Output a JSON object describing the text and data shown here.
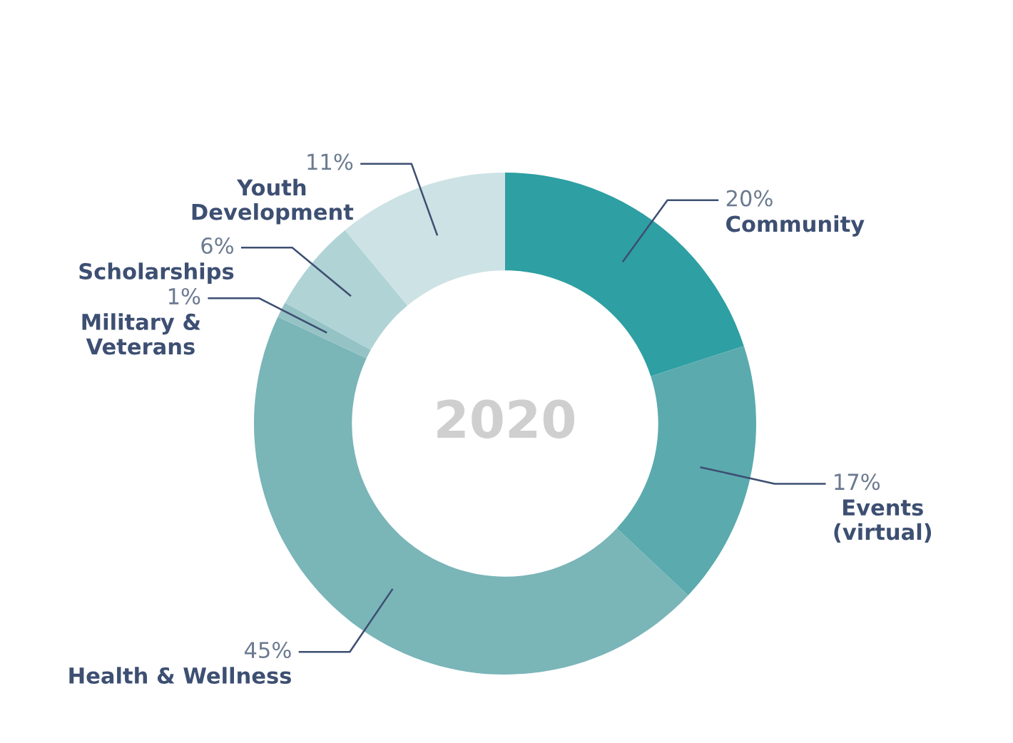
{
  "chart_data": {
    "type": "donut",
    "title": "2020",
    "categories": [
      "Community",
      "Events\n(virtual)",
      "Health & Wellness",
      "Military &\nVeterans",
      "Scholarships",
      "Youth\nDevelopment"
    ],
    "values": [
      20,
      17,
      45,
      1,
      6,
      11
    ],
    "value_labels": [
      "20%",
      "17%",
      "45%",
      "1%",
      "6%",
      "11%"
    ],
    "colors": [
      "#2e9fa3",
      "#5aaaae",
      "#7ab5b8",
      "#95c3c5",
      "#b0d3d5",
      "#cde2e4"
    ]
  }
}
